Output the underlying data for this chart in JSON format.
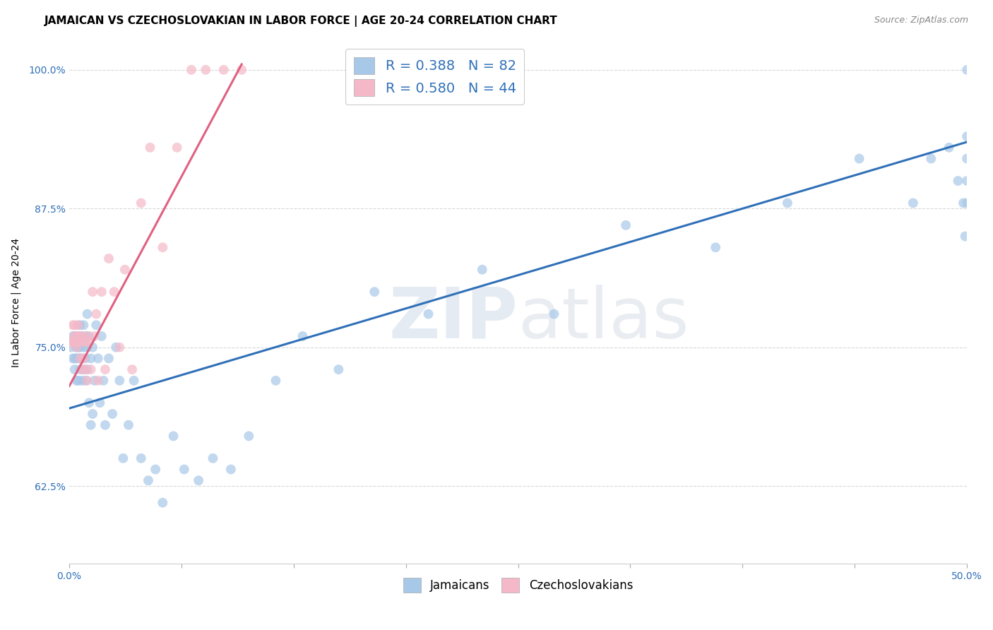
{
  "title": "JAMAICAN VS CZECHOSLOVAKIAN IN LABOR FORCE | AGE 20-24 CORRELATION CHART",
  "source": "Source: ZipAtlas.com",
  "ylabel": "In Labor Force | Age 20-24",
  "ytick_labels": [
    "100.0%",
    "87.5%",
    "75.0%",
    "62.5%"
  ],
  "ytick_values": [
    1.0,
    0.875,
    0.75,
    0.625
  ],
  "xlim": [
    0.0,
    0.5
  ],
  "ylim": [
    0.555,
    1.025
  ],
  "blue_R": 0.388,
  "blue_N": 82,
  "pink_R": 0.58,
  "pink_N": 44,
  "blue_color": "#a8c8e8",
  "pink_color": "#f4b8c8",
  "blue_line_color": "#3070b8",
  "pink_line_color": "#e06080",
  "watermark_zip": "ZIP",
  "watermark_atlas": "atlas",
  "legend_jamaicans": "Jamaicans",
  "legend_czechoslovakians": "Czechoslovakians",
  "blue_x": [
    0.001,
    0.002,
    0.002,
    0.003,
    0.003,
    0.003,
    0.004,
    0.004,
    0.004,
    0.004,
    0.005,
    0.005,
    0.005,
    0.005,
    0.006,
    0.006,
    0.006,
    0.006,
    0.007,
    0.007,
    0.007,
    0.008,
    0.008,
    0.008,
    0.009,
    0.009,
    0.009,
    0.01,
    0.01,
    0.01,
    0.011,
    0.011,
    0.012,
    0.012,
    0.013,
    0.013,
    0.014,
    0.015,
    0.016,
    0.017,
    0.018,
    0.019,
    0.02,
    0.022,
    0.024,
    0.026,
    0.028,
    0.03,
    0.033,
    0.036,
    0.04,
    0.044,
    0.048,
    0.052,
    0.058,
    0.064,
    0.072,
    0.08,
    0.09,
    0.1,
    0.115,
    0.13,
    0.15,
    0.17,
    0.2,
    0.23,
    0.27,
    0.31,
    0.36,
    0.4,
    0.44,
    0.47,
    0.48,
    0.49,
    0.495,
    0.498,
    0.499,
    0.5,
    0.5,
    0.5,
    0.5,
    0.5
  ],
  "blue_y": [
    0.75,
    0.74,
    0.76,
    0.73,
    0.74,
    0.76,
    0.72,
    0.74,
    0.75,
    0.76,
    0.72,
    0.74,
    0.75,
    0.76,
    0.73,
    0.75,
    0.77,
    0.74,
    0.72,
    0.74,
    0.76,
    0.73,
    0.75,
    0.77,
    0.72,
    0.74,
    0.76,
    0.73,
    0.75,
    0.78,
    0.7,
    0.76,
    0.68,
    0.74,
    0.69,
    0.75,
    0.72,
    0.77,
    0.74,
    0.7,
    0.76,
    0.72,
    0.68,
    0.74,
    0.69,
    0.75,
    0.72,
    0.65,
    0.68,
    0.72,
    0.65,
    0.63,
    0.64,
    0.61,
    0.67,
    0.64,
    0.63,
    0.65,
    0.64,
    0.67,
    0.72,
    0.76,
    0.73,
    0.8,
    0.78,
    0.82,
    0.78,
    0.86,
    0.84,
    0.88,
    0.92,
    0.88,
    0.92,
    0.93,
    0.9,
    0.88,
    0.85,
    0.9,
    0.88,
    0.92,
    0.94,
    1.0
  ],
  "pink_x": [
    0.001,
    0.002,
    0.002,
    0.003,
    0.003,
    0.003,
    0.004,
    0.004,
    0.004,
    0.005,
    0.005,
    0.005,
    0.006,
    0.006,
    0.006,
    0.007,
    0.007,
    0.008,
    0.008,
    0.009,
    0.009,
    0.01,
    0.01,
    0.011,
    0.012,
    0.013,
    0.014,
    0.015,
    0.016,
    0.018,
    0.02,
    0.022,
    0.025,
    0.028,
    0.031,
    0.035,
    0.04,
    0.045,
    0.052,
    0.06,
    0.068,
    0.076,
    0.086,
    0.096
  ],
  "pink_y": [
    0.755,
    0.755,
    0.77,
    0.755,
    0.76,
    0.77,
    0.75,
    0.76,
    0.755,
    0.755,
    0.77,
    0.755,
    0.74,
    0.76,
    0.755,
    0.73,
    0.76,
    0.755,
    0.74,
    0.73,
    0.755,
    0.72,
    0.76,
    0.755,
    0.73,
    0.8,
    0.76,
    0.78,
    0.72,
    0.8,
    0.73,
    0.83,
    0.8,
    0.75,
    0.82,
    0.73,
    0.88,
    0.93,
    0.84,
    0.93,
    1.0,
    1.0,
    1.0,
    1.0
  ],
  "title_fontsize": 11,
  "axis_label_fontsize": 10,
  "tick_fontsize": 10,
  "background_color": "#ffffff",
  "grid_color": "#d8d8d8"
}
